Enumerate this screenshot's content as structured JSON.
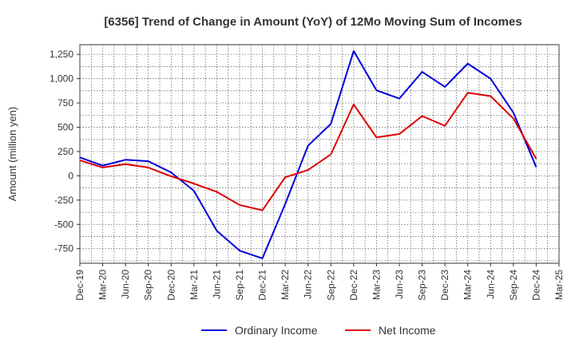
{
  "chart_data": {
    "type": "line",
    "title": "[6356]  Trend of Change in Amount (YoY) of 12Mo Moving Sum of Incomes",
    "xlabel": "",
    "ylabel": "Amount (million yen)",
    "ylim": [
      -900,
      1350
    ],
    "yticks": [
      1250,
      1000,
      750,
      500,
      250,
      0,
      -250,
      -500,
      -750
    ],
    "ytick_labels": [
      "1,250",
      "1,000",
      "750",
      "500",
      "250",
      "0",
      "-250",
      "-500",
      "-750"
    ],
    "categories": [
      "Dec-19",
      "Mar-20",
      "Jun-20",
      "Sep-20",
      "Dec-20",
      "Mar-21",
      "Jun-21",
      "Sep-21",
      "Dec-21",
      "Mar-22",
      "Jun-22",
      "Sep-22",
      "Dec-22",
      "Mar-23",
      "Jun-23",
      "Sep-23",
      "Dec-23",
      "Mar-24",
      "Jun-24",
      "Sep-24",
      "Dec-24",
      "Mar-25"
    ],
    "grid": true,
    "legend_position": "bottom",
    "series": [
      {
        "name": "Ordinary Income",
        "color": "#0000dd",
        "values": [
          190,
          105,
          165,
          150,
          35,
          -155,
          -565,
          -770,
          -850,
          -290,
          310,
          535,
          1285,
          880,
          795,
          1070,
          915,
          1155,
          1000,
          650,
          90,
          null
        ]
      },
      {
        "name": "Net Income",
        "color": "#dd0000",
        "values": [
          160,
          85,
          120,
          85,
          -5,
          -80,
          -165,
          -300,
          -355,
          -15,
          60,
          220,
          735,
          395,
          430,
          615,
          515,
          855,
          820,
          590,
          175,
          null
        ]
      }
    ]
  }
}
